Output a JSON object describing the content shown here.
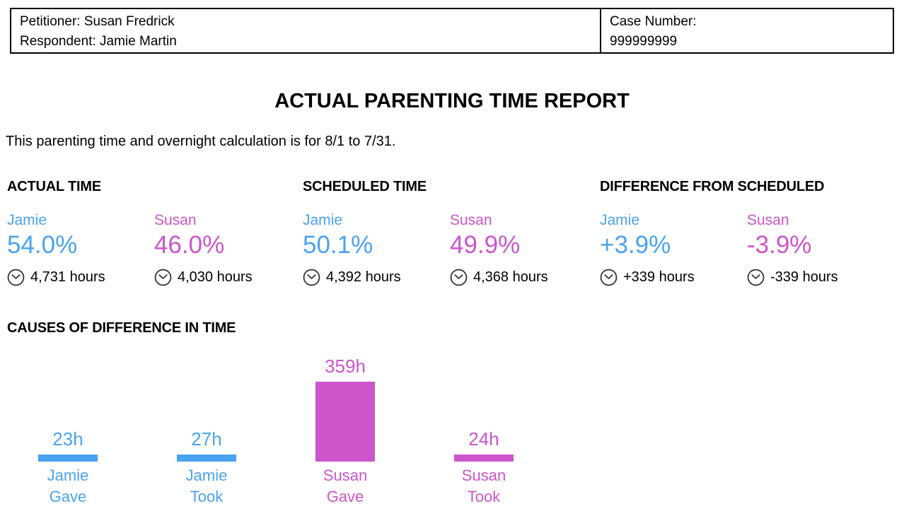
{
  "header": {
    "petitioner": "Petitioner: Susan Fredrick",
    "respondent": "Respondent: Jamie Martin",
    "case_number_label": "Case Number:",
    "case_number_value": "999999999"
  },
  "title": "ACTUAL PARENTING TIME REPORT",
  "subtitle": "This parenting time and overnight calculation is for 8/1 to 7/31.",
  "colors": {
    "jamie": "#4AA3F0",
    "susan": "#CC55CC",
    "text": "#000000",
    "clock_icon": "#333333"
  },
  "icons": {
    "hours_icon": "clock-icon"
  },
  "sections": [
    {
      "heading": "ACTUAL TIME",
      "parents": [
        {
          "name": "Jamie",
          "percent": "54.0%",
          "hours": "4,731 hours"
        },
        {
          "name": "Susan",
          "percent": "46.0%",
          "hours": "4,030 hours"
        }
      ]
    },
    {
      "heading": "SCHEDULED TIME",
      "parents": [
        {
          "name": "Jamie",
          "percent": "50.1%",
          "hours": "4,392 hours"
        },
        {
          "name": "Susan",
          "percent": "49.9%",
          "hours": "4,368 hours"
        }
      ]
    },
    {
      "heading": "DIFFERENCE FROM SCHEDULED",
      "parents": [
        {
          "name": "Jamie",
          "percent": "+3.9%",
          "hours": "+339 hours"
        },
        {
          "name": "Susan",
          "percent": "-3.9%",
          "hours": "-339 hours"
        }
      ]
    }
  ],
  "chart_heading": "CAUSES OF DIFFERENCE IN TIME",
  "chart_data": {
    "type": "bar",
    "title": "CAUSES OF DIFFERENCE IN TIME",
    "categories": [
      "Jamie Gave",
      "Jamie Took",
      "Susan Gave",
      "Susan Took"
    ],
    "values": [
      23,
      27,
      359,
      24
    ],
    "value_labels": [
      "23h",
      "27h",
      "359h",
      "24h"
    ],
    "bar_colors": [
      "#4AA3F0",
      "#4AA3F0",
      "#CC55CC",
      "#CC55CC"
    ],
    "category_lines": [
      [
        "Jamie",
        "Gave"
      ],
      [
        "Jamie",
        "Took"
      ],
      [
        "Susan",
        "Gave"
      ],
      [
        "Susan",
        "Took"
      ]
    ],
    "unit": "hours",
    "ylim": [
      0,
      359
    ],
    "grid": false,
    "legend": false
  }
}
